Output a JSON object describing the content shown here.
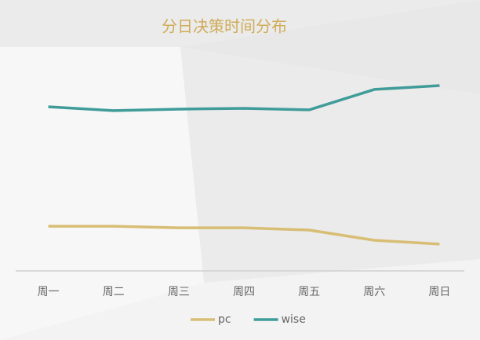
{
  "chart_data": {
    "type": "line",
    "title": "分日决策时间分布",
    "categories": [
      "周一",
      "周二",
      "周三",
      "周四",
      "周五",
      "周六",
      "周日"
    ],
    "series": [
      {
        "name": "pc",
        "color": "#d8bd74",
        "values": [
          17.5,
          17.5,
          16.9,
          16.9,
          16.0,
          12.0,
          10.5
        ]
      },
      {
        "name": "wise",
        "color": "#3f9c99",
        "values": [
          64.3,
          62.8,
          63.4,
          63.7,
          63.1,
          71.1,
          72.6
        ]
      }
    ],
    "ylim": [
      0,
      100
    ]
  }
}
